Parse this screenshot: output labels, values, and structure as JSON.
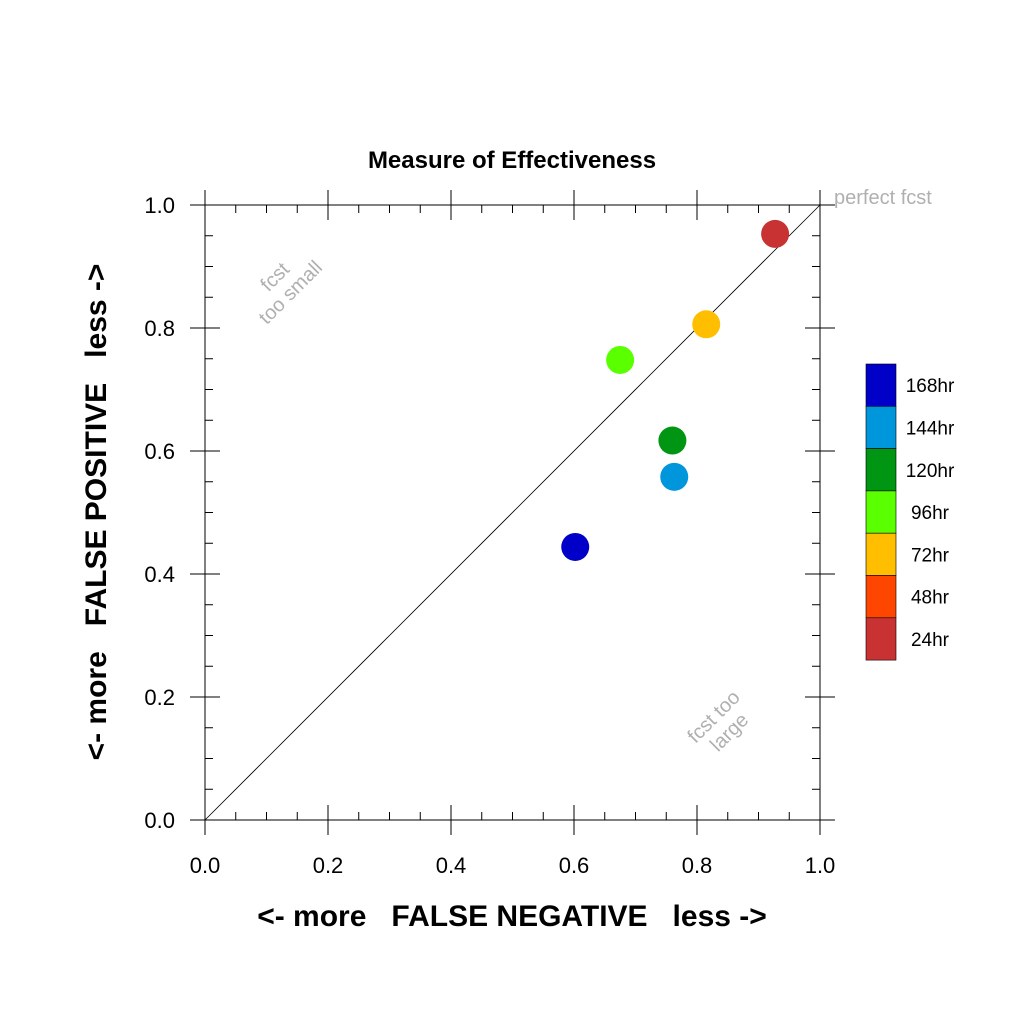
{
  "chart_data": {
    "type": "scatter",
    "title": "Measure of Effectiveness",
    "xlabel": "<- more   FALSE NEGATIVE   less ->",
    "ylabel": "<- more   FALSE POSITIVE   less ->",
    "xlim": [
      0.0,
      1.0
    ],
    "ylim": [
      0.0,
      1.0
    ],
    "xticks": [
      "0.0",
      "0.2",
      "0.4",
      "0.6",
      "0.8",
      "1.0"
    ],
    "yticks": [
      "0.0",
      "0.2",
      "0.4",
      "0.6",
      "0.8",
      "1.0"
    ],
    "diagonal_line": true,
    "grid": false,
    "annotations": {
      "perfect": "perfect fcst",
      "too_small_1": "fcst",
      "too_small_2": "too small",
      "too_large_1": "fcst too",
      "too_large_2": "large"
    },
    "legend_placement": "right",
    "legend": [
      {
        "label": "168hr",
        "color": "#0000c8"
      },
      {
        "label": "144hr",
        "color": "#0096dc"
      },
      {
        "label": "120hr",
        "color": "#009614"
      },
      {
        "label": "96hr",
        "color": "#5aff00"
      },
      {
        "label": "72hr",
        "color": "#ffbe00"
      },
      {
        "label": "48hr",
        "color": "#ff4600"
      },
      {
        "label": "24hr",
        "color": "#c83232"
      }
    ],
    "points": [
      {
        "series": "168hr",
        "x": 0.602,
        "y": 0.444,
        "color": "#0000c8"
      },
      {
        "series": "144hr",
        "x": 0.763,
        "y": 0.558,
        "color": "#0096dc"
      },
      {
        "series": "120hr",
        "x": 0.76,
        "y": 0.617,
        "color": "#009614"
      },
      {
        "series": "96hr",
        "x": 0.675,
        "y": 0.748,
        "color": "#5aff00"
      },
      {
        "series": "72hr",
        "x": 0.815,
        "y": 0.806,
        "color": "#ffbe00"
      },
      {
        "series": "24hr",
        "x": 0.927,
        "y": 0.953,
        "color": "#c83232"
      }
    ]
  }
}
